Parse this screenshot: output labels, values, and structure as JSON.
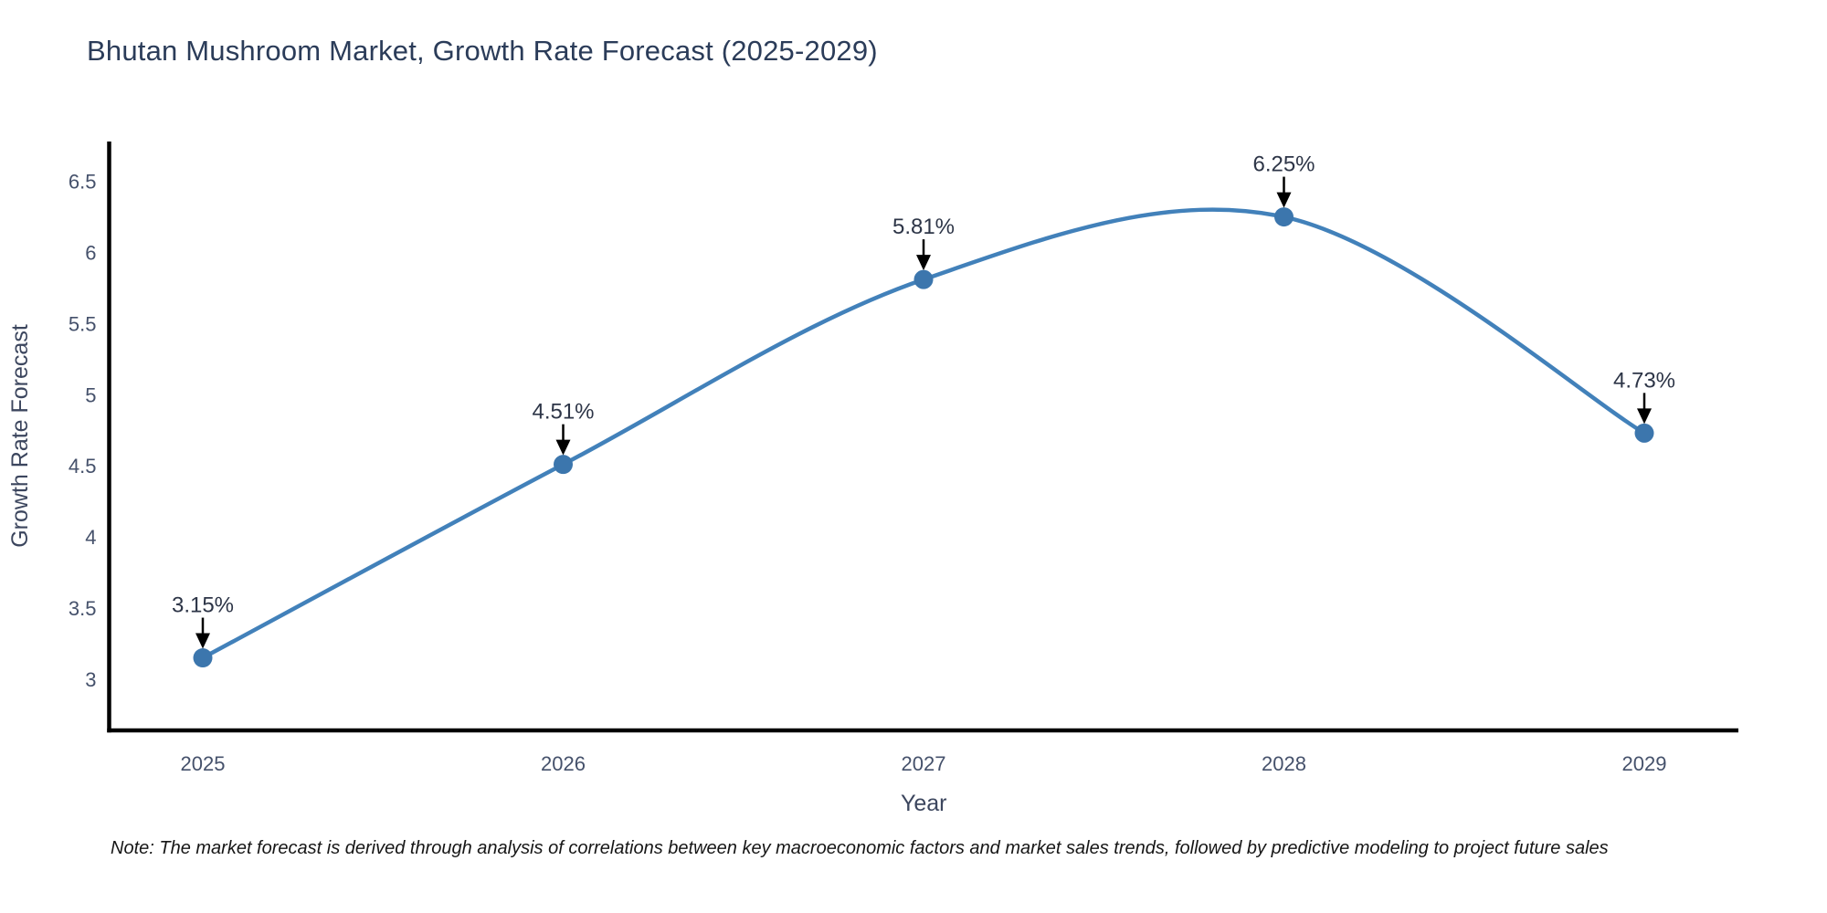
{
  "header": {
    "title": "Bhutan Mushroom Market, Growth Rate Forecast (2025-2029)"
  },
  "note": {
    "text": "Note: The market forecast is derived through analysis of correlations between key macroeconomic factors and market sales trends, followed by predictive modeling to project future sales"
  },
  "chart_data": {
    "type": "line",
    "title": "Bhutan Mushroom Market, Growth Rate Forecast (2025-2029)",
    "xlabel": "Year",
    "ylabel": "Growth Rate Forecast",
    "categories": [
      2025,
      2026,
      2027,
      2028,
      2029
    ],
    "values": [
      3.15,
      4.51,
      5.81,
      6.25,
      4.73
    ],
    "point_labels": [
      "3.15%",
      "4.51%",
      "5.81%",
      "6.25%",
      "4.73%"
    ],
    "yticks": [
      3,
      3.5,
      4,
      4.5,
      5,
      5.5,
      6,
      6.5
    ],
    "ylim": [
      2.64,
      6.78
    ],
    "grid": false,
    "legend": "none",
    "line_style": "spline",
    "marker_style": "circle",
    "annotation_arrow": "down",
    "colors": {
      "line": "#4281ba",
      "marker": "#3c76ad",
      "axis": "#000000",
      "title_text": "#2b3c59",
      "tick_text": "#45516b",
      "axis_label_text": "#3c465e",
      "annotation_text": "#2d3547",
      "arrow": "#000000",
      "background": "#ffffff"
    }
  }
}
